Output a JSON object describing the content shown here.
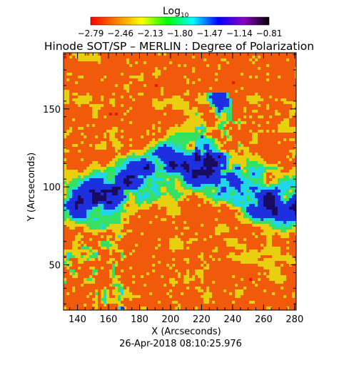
{
  "chart_data": {
    "type": "heatmap",
    "title": "Hinode SOT/SP – MERLIN : Degree of Polarization",
    "colorbar": {
      "label_main": "Log",
      "label_sub": "10",
      "ticks": [
        "−2.79",
        "−2.46",
        "−2.13",
        "−1.80",
        "−1.47",
        "−1.14",
        "−0.81"
      ],
      "range": [
        -2.79,
        -0.81
      ],
      "colors": [
        "#ff0000",
        "#ff7f00",
        "#ffff00",
        "#00ff00",
        "#00ffff",
        "#0000ff",
        "#8b00c8",
        "#000000"
      ]
    },
    "xlabel": "X (Arcseconds)",
    "ylabel": "Y (Arcseconds)",
    "xlim": [
      131,
      281
    ],
    "ylim": [
      21,
      186
    ],
    "xticks": [
      140,
      160,
      180,
      200,
      220,
      240,
      260,
      280
    ],
    "yticks": [
      50,
      100,
      150
    ],
    "timestamp": "26-Apr-2018 08:10:25.976",
    "map_colors": {
      "background": "#f05a0a",
      "high_red": "#e3170b",
      "mid_yellow": "#e8d010",
      "green": "#35e065",
      "cyan": "#1fd7e8",
      "blue": "#1e2fe0",
      "dark": "#1a0a60"
    }
  }
}
